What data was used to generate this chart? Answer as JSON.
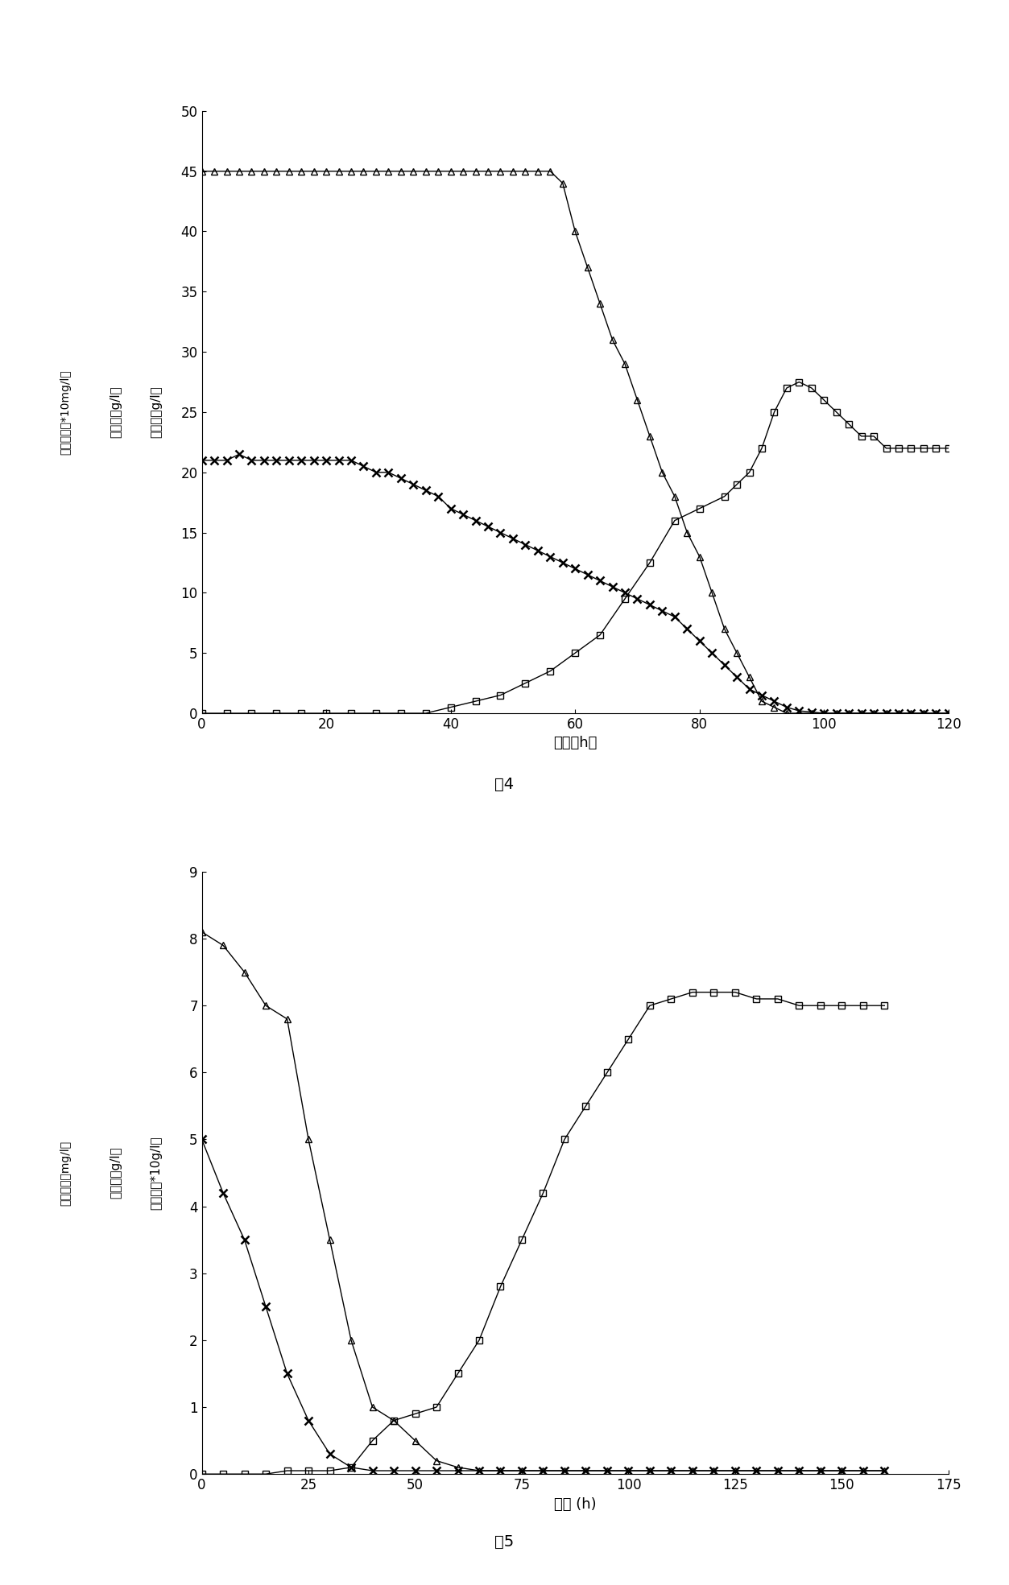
{
  "fig4": {
    "title": "图4",
    "xlabel": "时间（h）",
    "ylabel1": "生物量（g/l）",
    "ylabel2": "葡萄糖（g/l）",
    "ylabel3": "磷酸根磷（*10mg/l）",
    "xlim": [
      0,
      120
    ],
    "ylim": [
      0,
      50
    ],
    "yticks": [
      0,
      5,
      10,
      15,
      20,
      25,
      30,
      35,
      40,
      45,
      50
    ],
    "xticks": [
      0,
      20,
      40,
      60,
      80,
      100,
      120
    ],
    "glucose_x": [
      0,
      2,
      4,
      6,
      8,
      10,
      12,
      14,
      16,
      18,
      20,
      22,
      24,
      26,
      28,
      30,
      32,
      34,
      36,
      38,
      40,
      42,
      44,
      46,
      48,
      50,
      52,
      54,
      56,
      58,
      60,
      62,
      64,
      66,
      68,
      70,
      72,
      74,
      76,
      78,
      80,
      82,
      84,
      86,
      88,
      90,
      92,
      94,
      96,
      98,
      100,
      102,
      104,
      106,
      108,
      110,
      112,
      114,
      116,
      118,
      120
    ],
    "glucose_y": [
      45,
      45,
      45,
      45,
      45,
      45,
      45,
      45,
      45,
      45,
      45,
      45,
      45,
      45,
      45,
      45,
      45,
      45,
      45,
      45,
      45,
      45,
      45,
      45,
      45,
      45,
      45,
      45,
      45,
      44,
      40,
      37,
      34,
      31,
      29,
      26,
      23,
      20,
      18,
      15,
      13,
      10,
      7,
      5,
      3,
      1,
      0.5,
      0,
      0,
      0,
      0,
      0,
      0,
      0,
      0,
      0,
      0,
      0,
      0,
      0,
      0
    ],
    "biomass_x": [
      0,
      4,
      8,
      12,
      16,
      20,
      24,
      28,
      32,
      36,
      40,
      44,
      48,
      52,
      56,
      60,
      64,
      68,
      72,
      76,
      80,
      84,
      86,
      88,
      90,
      92,
      94,
      96,
      98,
      100,
      102,
      104,
      106,
      108,
      110,
      112,
      114,
      116,
      118,
      120
    ],
    "biomass_y": [
      0,
      0,
      0,
      0,
      0,
      0,
      0,
      0,
      0,
      0,
      0.5,
      1.0,
      1.5,
      2.5,
      3.5,
      5.0,
      6.5,
      9.5,
      12.5,
      16,
      17,
      18,
      19,
      20,
      22,
      25,
      27,
      27.5,
      27,
      26,
      25,
      24,
      23,
      23,
      22,
      22,
      22,
      22,
      22,
      22
    ],
    "phosphate_x": [
      0,
      2,
      4,
      6,
      8,
      10,
      12,
      14,
      16,
      18,
      20,
      22,
      24,
      26,
      28,
      30,
      32,
      34,
      36,
      38,
      40,
      42,
      44,
      46,
      48,
      50,
      52,
      54,
      56,
      58,
      60,
      62,
      64,
      66,
      68,
      70,
      72,
      74,
      76,
      78,
      80,
      82,
      84,
      86,
      88,
      90,
      92,
      94,
      96,
      98,
      100,
      102,
      104,
      106,
      108,
      110,
      112,
      114,
      116,
      118,
      120
    ],
    "phosphate_y": [
      21,
      21,
      21,
      21.5,
      21,
      21,
      21,
      21,
      21,
      21,
      21,
      21,
      21,
      20.5,
      20,
      20,
      19.5,
      19,
      18.5,
      18,
      17,
      16.5,
      16,
      15.5,
      15,
      14.5,
      14,
      13.5,
      13,
      12.5,
      12,
      11.5,
      11,
      10.5,
      10,
      9.5,
      9,
      8.5,
      8,
      7,
      6,
      5,
      4,
      3,
      2,
      1.5,
      1,
      0.5,
      0.2,
      0.1,
      0,
      0,
      0,
      0,
      0,
      0,
      0,
      0,
      0,
      0,
      0
    ]
  },
  "fig5": {
    "title": "图5",
    "xlabel": "时间 (h)",
    "ylabel1": "生物量（*10g/l）",
    "ylabel2": "葡萄糖（g/l）",
    "ylabel3": "磷酸根磷（mg/l）",
    "xlim": [
      0,
      175
    ],
    "ylim": [
      0,
      9
    ],
    "yticks": [
      0,
      1,
      2,
      3,
      4,
      5,
      6,
      7,
      8,
      9
    ],
    "xticks": [
      0,
      25,
      50,
      75,
      100,
      125,
      150,
      175
    ],
    "glucose_x": [
      0,
      5,
      10,
      15,
      20,
      25,
      30,
      35,
      40,
      45,
      50,
      55,
      60,
      65,
      70,
      75,
      80,
      85,
      90,
      95,
      100,
      105,
      110,
      115,
      120,
      125,
      130,
      135,
      140,
      145,
      150,
      155,
      160
    ],
    "glucose_y": [
      8.1,
      7.9,
      7.5,
      7.0,
      6.8,
      5.0,
      3.5,
      2.0,
      1.0,
      0.8,
      0.5,
      0.2,
      0.1,
      0.05,
      0.05,
      0.05,
      0.05,
      0.05,
      0.05,
      0.05,
      0.05,
      0.05,
      0.05,
      0.05,
      0.05,
      0.05,
      0.05,
      0.05,
      0.05,
      0.05,
      0.05,
      0.05,
      0.05
    ],
    "biomass_x": [
      0,
      5,
      10,
      15,
      20,
      25,
      30,
      35,
      40,
      45,
      50,
      55,
      60,
      65,
      70,
      75,
      80,
      85,
      90,
      95,
      100,
      105,
      110,
      115,
      120,
      125,
      130,
      135,
      140,
      145,
      150,
      155,
      160
    ],
    "biomass_y": [
      0,
      0,
      0,
      0,
      0.05,
      0.05,
      0.05,
      0.1,
      0.5,
      0.8,
      0.9,
      1.0,
      1.5,
      2.0,
      2.8,
      3.5,
      4.2,
      5.0,
      5.5,
      6.0,
      6.5,
      7.0,
      7.1,
      7.2,
      7.2,
      7.2,
      7.1,
      7.1,
      7.0,
      7.0,
      7.0,
      7.0,
      7.0
    ],
    "phosphate_x": [
      0,
      5,
      10,
      15,
      20,
      25,
      30,
      35,
      40,
      45,
      50,
      55,
      60,
      65,
      70,
      75,
      80,
      85,
      90,
      95,
      100,
      105,
      110,
      115,
      120,
      125,
      130,
      135,
      140,
      145,
      150,
      155,
      160
    ],
    "phosphate_y": [
      5.0,
      4.2,
      3.5,
      2.5,
      1.5,
      0.8,
      0.3,
      0.1,
      0.05,
      0.05,
      0.05,
      0.05,
      0.05,
      0.05,
      0.05,
      0.05,
      0.05,
      0.05,
      0.05,
      0.05,
      0.05,
      0.05,
      0.05,
      0.05,
      0.05,
      0.05,
      0.05,
      0.05,
      0.05,
      0.05,
      0.05,
      0.05,
      0.05
    ]
  }
}
